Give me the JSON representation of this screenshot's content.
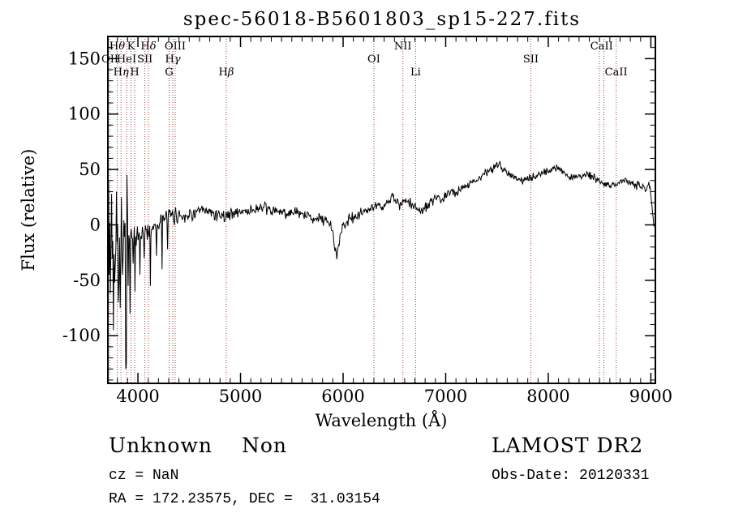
{
  "title": "spec-56018-B5601803_sp15-227.fits",
  "footer": {
    "class_label": "Unknown",
    "subclass_label": "Non",
    "cz_line": "cz = NaN",
    "radec_line": "RA = 172.23575, DEC =  31.03154",
    "survey_label": "LAMOST DR2",
    "obs_date_line": "Obs-Date: 20120331"
  },
  "chart_data": {
    "type": "line",
    "title": "spec-56018-B5601803_sp15-227.fits",
    "xlabel": "Wavelength (Å)",
    "ylabel": "Flux (relative)",
    "xlim": [
      3707,
      9044
    ],
    "ylim": [
      -143,
      170
    ],
    "xticks": [
      4000,
      5000,
      6000,
      7000,
      8000,
      9000
    ],
    "yticks": [
      -100,
      -50,
      0,
      50,
      100,
      150
    ],
    "x_minor_step": 100,
    "y_minor_step": 10,
    "grid": false,
    "legend": "none",
    "colors": {
      "background": "#ffffff",
      "spectrum": "#000000",
      "frame": "#000000",
      "line_marker": "#994444"
    },
    "marked_lines": [
      3727,
      3798,
      3835,
      3889,
      3933,
      3968,
      4068,
      4102,
      4304,
      4340,
      4363,
      4861,
      6300,
      6583,
      6707,
      7830,
      8498,
      8542,
      8662
    ],
    "line_labels": [
      {
        "text": "Hθ",
        "x": 3798,
        "row": 1
      },
      {
        "text": "K",
        "x": 3933,
        "row": 1
      },
      {
        "text": "Hδ",
        "x": 4102,
        "row": 1
      },
      {
        "text": "OIII",
        "x": 4363,
        "row": 1
      },
      {
        "text": "NII",
        "x": 6583,
        "row": 1
      },
      {
        "text": "CaII",
        "x": 8520,
        "row": 1
      },
      {
        "text": "OII",
        "x": 3727,
        "row": 2
      },
      {
        "text": "HeI",
        "x": 3889,
        "row": 2
      },
      {
        "text": "SII",
        "x": 4068,
        "row": 2
      },
      {
        "text": "Hγ",
        "x": 4340,
        "row": 2
      },
      {
        "text": "OI",
        "x": 6300,
        "row": 2
      },
      {
        "text": "SII",
        "x": 7830,
        "row": 2
      },
      {
        "text": "Hη",
        "x": 3835,
        "row": 3
      },
      {
        "text": "H",
        "x": 3968,
        "row": 3
      },
      {
        "text": "G",
        "x": 4304,
        "row": 3
      },
      {
        "text": "Hβ",
        "x": 4861,
        "row": 3
      },
      {
        "text": "Li",
        "x": 6707,
        "row": 3
      },
      {
        "text": "CaII",
        "x": 8662,
        "row": 3
      }
    ],
    "continuum": [
      [
        3707,
        20
      ],
      [
        3715,
        -30
      ],
      [
        3725,
        5
      ],
      [
        3735,
        -25
      ],
      [
        3745,
        -10
      ],
      [
        3760,
        -30
      ],
      [
        3775,
        -15
      ],
      [
        3790,
        -20
      ],
      [
        3805,
        -12
      ],
      [
        3820,
        -18
      ],
      [
        3835,
        -12
      ],
      [
        3850,
        -16
      ],
      [
        3865,
        -10
      ],
      [
        3880,
        -15
      ],
      [
        3895,
        -12
      ],
      [
        3910,
        -13
      ],
      [
        3925,
        -10
      ],
      [
        3940,
        -12
      ],
      [
        3955,
        -10
      ],
      [
        3970,
        -11
      ],
      [
        3985,
        -9
      ],
      [
        4000,
        -9
      ],
      [
        4030,
        -8
      ],
      [
        4060,
        -7
      ],
      [
        4090,
        -5
      ],
      [
        4120,
        -3
      ],
      [
        4150,
        -2
      ],
      [
        4180,
        0
      ],
      [
        4210,
        3
      ],
      [
        4240,
        5
      ],
      [
        4270,
        6
      ],
      [
        4300,
        7
      ],
      [
        4330,
        8
      ],
      [
        4360,
        8
      ],
      [
        4400,
        9
      ],
      [
        4450,
        8
      ],
      [
        4500,
        9
      ],
      [
        4550,
        10
      ],
      [
        4600,
        12
      ],
      [
        4650,
        12
      ],
      [
        4700,
        11
      ],
      [
        4750,
        10
      ],
      [
        4800,
        9
      ],
      [
        4861,
        8
      ],
      [
        4900,
        10
      ],
      [
        4950,
        11
      ],
      [
        5000,
        12
      ],
      [
        5100,
        13
      ],
      [
        5200,
        15
      ],
      [
        5300,
        13
      ],
      [
        5400,
        11
      ],
      [
        5500,
        11
      ],
      [
        5600,
        9
      ],
      [
        5700,
        7
      ],
      [
        5800,
        5
      ],
      [
        5870,
        1
      ],
      [
        5900,
        -8
      ],
      [
        5925,
        -20
      ],
      [
        5940,
        -29
      ],
      [
        5955,
        -18
      ],
      [
        5975,
        -8
      ],
      [
        6000,
        0
      ],
      [
        6050,
        4
      ],
      [
        6100,
        6
      ],
      [
        6150,
        9
      ],
      [
        6200,
        12
      ],
      [
        6250,
        14
      ],
      [
        6300,
        15
      ],
      [
        6350,
        18
      ],
      [
        6400,
        17
      ],
      [
        6450,
        21
      ],
      [
        6490,
        26
      ],
      [
        6520,
        22
      ],
      [
        6550,
        17
      ],
      [
        6590,
        20
      ],
      [
        6630,
        21
      ],
      [
        6670,
        18
      ],
      [
        6707,
        16
      ],
      [
        6740,
        13
      ],
      [
        6780,
        14
      ],
      [
        6820,
        17
      ],
      [
        6860,
        20
      ],
      [
        6900,
        24
      ],
      [
        6950,
        22
      ],
      [
        7000,
        26
      ],
      [
        7050,
        30
      ],
      [
        7100,
        29
      ],
      [
        7150,
        33
      ],
      [
        7200,
        36
      ],
      [
        7250,
        38
      ],
      [
        7300,
        41
      ],
      [
        7350,
        44
      ],
      [
        7400,
        47
      ],
      [
        7450,
        50
      ],
      [
        7500,
        54
      ],
      [
        7530,
        55
      ],
      [
        7560,
        51
      ],
      [
        7600,
        48
      ],
      [
        7650,
        44
      ],
      [
        7700,
        41
      ],
      [
        7750,
        40
      ],
      [
        7800,
        41
      ],
      [
        7850,
        43
      ],
      [
        7900,
        45
      ],
      [
        7950,
        47
      ],
      [
        8000,
        49
      ],
      [
        8050,
        51
      ],
      [
        8100,
        52
      ],
      [
        8150,
        47
      ],
      [
        8200,
        43
      ],
      [
        8250,
        42
      ],
      [
        8300,
        44
      ],
      [
        8350,
        46
      ],
      [
        8400,
        45
      ],
      [
        8450,
        42
      ],
      [
        8500,
        39
      ],
      [
        8550,
        38
      ],
      [
        8600,
        36
      ],
      [
        8650,
        35
      ],
      [
        8700,
        39
      ],
      [
        8750,
        40
      ],
      [
        8800,
        38
      ],
      [
        8850,
        36
      ],
      [
        8900,
        35
      ],
      [
        8950,
        33
      ],
      [
        8980,
        36
      ],
      [
        9000,
        28
      ],
      [
        9015,
        12
      ],
      [
        9030,
        2
      ],
      [
        9044,
        0
      ]
    ],
    "noise_segments": [
      [
        3707,
        3790,
        30
      ],
      [
        3790,
        3900,
        40
      ],
      [
        3900,
        3990,
        16
      ],
      [
        3990,
        4150,
        11
      ],
      [
        4150,
        4400,
        9
      ],
      [
        4400,
        5000,
        7
      ],
      [
        5000,
        5800,
        6.5
      ],
      [
        5800,
        6100,
        7
      ],
      [
        6100,
        6900,
        5.5
      ],
      [
        6900,
        7600,
        4.5
      ],
      [
        7600,
        8300,
        4
      ],
      [
        8300,
        9044,
        4.5
      ]
    ],
    "spikes": [
      [
        3712,
        40
      ],
      [
        3718,
        -45
      ],
      [
        3733,
        -62
      ],
      [
        3741,
        28
      ],
      [
        3748,
        -30
      ],
      [
        3762,
        -95
      ],
      [
        3775,
        -52
      ],
      [
        3790,
        30
      ],
      [
        3808,
        -70
      ],
      [
        3826,
        -75
      ],
      [
        3840,
        25
      ],
      [
        3852,
        -45
      ],
      [
        3878,
        -130
      ],
      [
        3884,
        -125
      ],
      [
        3890,
        45
      ],
      [
        3905,
        -55
      ],
      [
        3921,
        -80
      ],
      [
        3950,
        -35
      ],
      [
        3968,
        -60
      ],
      [
        4016,
        -45
      ],
      [
        4060,
        -30
      ],
      [
        4119,
        -55
      ],
      [
        4180,
        -28
      ],
      [
        4237,
        -40
      ],
      [
        4290,
        -22
      ],
      [
        5940,
        -31
      ]
    ]
  }
}
